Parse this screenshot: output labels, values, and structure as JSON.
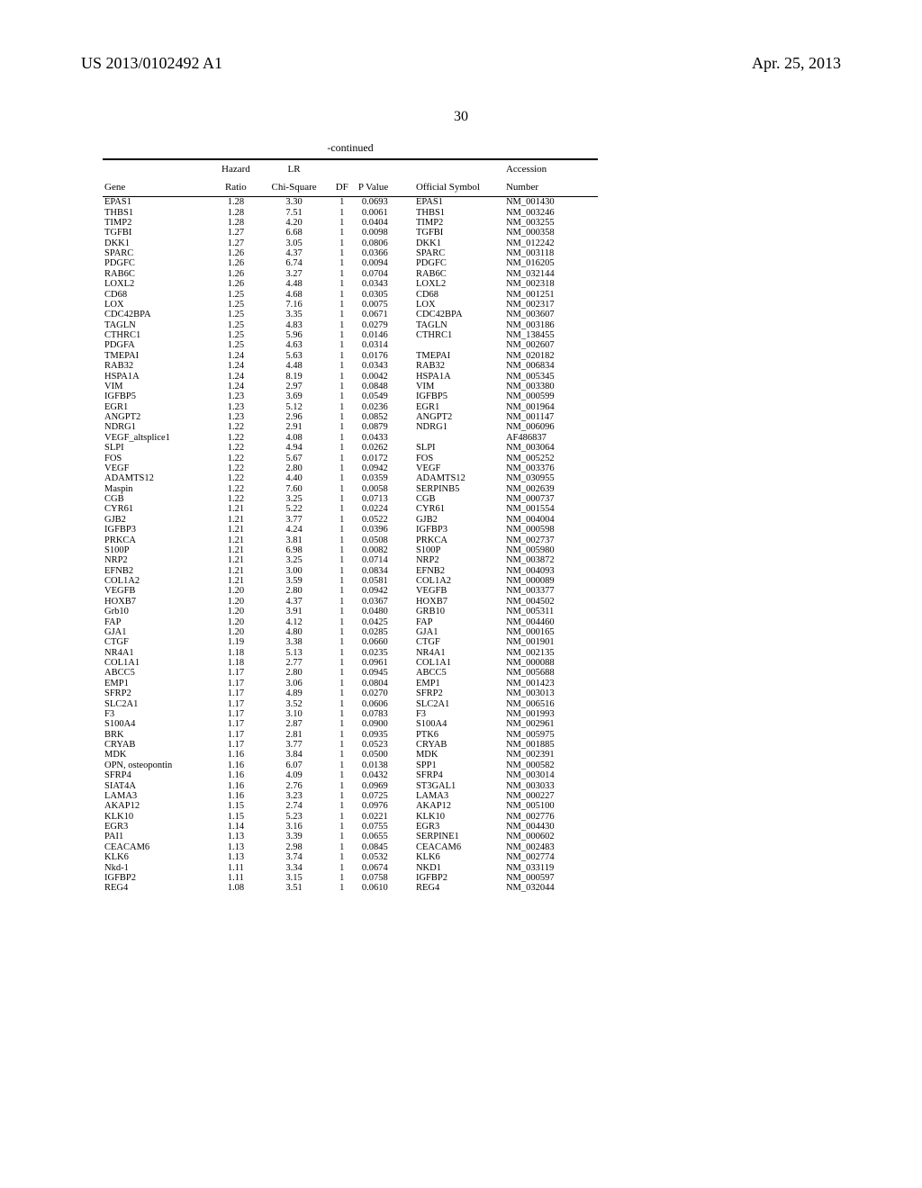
{
  "header": {
    "doc_id": "US 2013/0102492 A1",
    "date": "Apr. 25, 2013",
    "page_number": "30"
  },
  "table": {
    "continued_label": "-continued",
    "columns": {
      "gene": "Gene",
      "hazard_ratio_l1": "Hazard",
      "hazard_ratio_l2": "Ratio",
      "lr_l1": "LR",
      "lr_l2": "Chi-Square",
      "df": "DF",
      "pvalue": "P Value",
      "official_symbol": "Official Symbol",
      "accession_l1": "Accession",
      "accession_l2": "Number"
    },
    "rows": [
      {
        "gene": "EPAS1",
        "hr": "1.28",
        "chi": "3.30",
        "df": "1",
        "pv": "0.0693",
        "sym": "EPAS1",
        "acc": "NM_001430"
      },
      {
        "gene": "THBS1",
        "hr": "1.28",
        "chi": "7.51",
        "df": "1",
        "pv": "0.0061",
        "sym": "THBS1",
        "acc": "NM_003246"
      },
      {
        "gene": "TIMP2",
        "hr": "1.28",
        "chi": "4.20",
        "df": "1",
        "pv": "0.0404",
        "sym": "TIMP2",
        "acc": "NM_003255"
      },
      {
        "gene": "TGFBI",
        "hr": "1.27",
        "chi": "6.68",
        "df": "1",
        "pv": "0.0098",
        "sym": "TGFBI",
        "acc": "NM_000358"
      },
      {
        "gene": "DKK1",
        "hr": "1.27",
        "chi": "3.05",
        "df": "1",
        "pv": "0.0806",
        "sym": "DKK1",
        "acc": "NM_012242"
      },
      {
        "gene": "SPARC",
        "hr": "1.26",
        "chi": "4.37",
        "df": "1",
        "pv": "0.0366",
        "sym": "SPARC",
        "acc": "NM_003118"
      },
      {
        "gene": "PDGFC",
        "hr": "1.26",
        "chi": "6.74",
        "df": "1",
        "pv": "0.0094",
        "sym": "PDGFC",
        "acc": "NM_016205"
      },
      {
        "gene": "RAB6C",
        "hr": "1.26",
        "chi": "3.27",
        "df": "1",
        "pv": "0.0704",
        "sym": "RAB6C",
        "acc": "NM_032144"
      },
      {
        "gene": "LOXL2",
        "hr": "1.26",
        "chi": "4.48",
        "df": "1",
        "pv": "0.0343",
        "sym": "LOXL2",
        "acc": "NM_002318"
      },
      {
        "gene": "CD68",
        "hr": "1.25",
        "chi": "4.68",
        "df": "1",
        "pv": "0.0305",
        "sym": "CD68",
        "acc": "NM_001251"
      },
      {
        "gene": "LOX",
        "hr": "1.25",
        "chi": "7.16",
        "df": "1",
        "pv": "0.0075",
        "sym": "LOX",
        "acc": "NM_002317"
      },
      {
        "gene": "CDC42BPA",
        "hr": "1.25",
        "chi": "3.35",
        "df": "1",
        "pv": "0.0671",
        "sym": "CDC42BPA",
        "acc": "NM_003607"
      },
      {
        "gene": "TAGLN",
        "hr": "1.25",
        "chi": "4.83",
        "df": "1",
        "pv": "0.0279",
        "sym": "TAGLN",
        "acc": "NM_003186"
      },
      {
        "gene": "CTHRC1",
        "hr": "1.25",
        "chi": "5.96",
        "df": "1",
        "pv": "0.0146",
        "sym": "CTHRC1",
        "acc": "NM_138455"
      },
      {
        "gene": "PDGFA",
        "hr": "1.25",
        "chi": "4.63",
        "df": "1",
        "pv": "0.0314",
        "sym": "",
        "acc": "NM_002607"
      },
      {
        "gene": "TMEPAI",
        "hr": "1.24",
        "chi": "5.63",
        "df": "1",
        "pv": "0.0176",
        "sym": "TMEPAI",
        "acc": "NM_020182"
      },
      {
        "gene": "RAB32",
        "hr": "1.24",
        "chi": "4.48",
        "df": "1",
        "pv": "0.0343",
        "sym": "RAB32",
        "acc": "NM_006834"
      },
      {
        "gene": "HSPA1A",
        "hr": "1.24",
        "chi": "8.19",
        "df": "1",
        "pv": "0.0042",
        "sym": "HSPA1A",
        "acc": "NM_005345"
      },
      {
        "gene": "VIM",
        "hr": "1.24",
        "chi": "2.97",
        "df": "1",
        "pv": "0.0848",
        "sym": "VIM",
        "acc": "NM_003380"
      },
      {
        "gene": "IGFBP5",
        "hr": "1.23",
        "chi": "3.69",
        "df": "1",
        "pv": "0.0549",
        "sym": "IGFBP5",
        "acc": "NM_000599"
      },
      {
        "gene": "EGR1",
        "hr": "1.23",
        "chi": "5.12",
        "df": "1",
        "pv": "0.0236",
        "sym": "EGR1",
        "acc": "NM_001964"
      },
      {
        "gene": "ANGPT2",
        "hr": "1.23",
        "chi": "2.96",
        "df": "1",
        "pv": "0.0852",
        "sym": "ANGPT2",
        "acc": "NM_001147"
      },
      {
        "gene": "NDRG1",
        "hr": "1.22",
        "chi": "2.91",
        "df": "1",
        "pv": "0.0879",
        "sym": "NDRG1",
        "acc": "NM_006096"
      },
      {
        "gene": "VEGF_altsplice1",
        "hr": "1.22",
        "chi": "4.08",
        "df": "1",
        "pv": "0.0433",
        "sym": "",
        "acc": "AF486837"
      },
      {
        "gene": "SLPI",
        "hr": "1.22",
        "chi": "4.94",
        "df": "1",
        "pv": "0.0262",
        "sym": "SLPI",
        "acc": "NM_003064"
      },
      {
        "gene": "FOS",
        "hr": "1.22",
        "chi": "5.67",
        "df": "1",
        "pv": "0.0172",
        "sym": "FOS",
        "acc": "NM_005252"
      },
      {
        "gene": "VEGF",
        "hr": "1.22",
        "chi": "2.80",
        "df": "1",
        "pv": "0.0942",
        "sym": "VEGF",
        "acc": "NM_003376"
      },
      {
        "gene": "ADAMTS12",
        "hr": "1.22",
        "chi": "4.40",
        "df": "1",
        "pv": "0.0359",
        "sym": "ADAMTS12",
        "acc": "NM_030955"
      },
      {
        "gene": "Maspin",
        "hr": "1.22",
        "chi": "7.60",
        "df": "1",
        "pv": "0.0058",
        "sym": "SERPINB5",
        "acc": "NM_002639"
      },
      {
        "gene": "CGB",
        "hr": "1.22",
        "chi": "3.25",
        "df": "1",
        "pv": "0.0713",
        "sym": "CGB",
        "acc": "NM_000737"
      },
      {
        "gene": "CYR61",
        "hr": "1.21",
        "chi": "5.22",
        "df": "1",
        "pv": "0.0224",
        "sym": "CYR61",
        "acc": "NM_001554"
      },
      {
        "gene": "GJB2",
        "hr": "1.21",
        "chi": "3.77",
        "df": "1",
        "pv": "0.0522",
        "sym": "GJB2",
        "acc": "NM_004004"
      },
      {
        "gene": "IGFBP3",
        "hr": "1.21",
        "chi": "4.24",
        "df": "1",
        "pv": "0.0396",
        "sym": "IGFBP3",
        "acc": "NM_000598"
      },
      {
        "gene": "PRKCA",
        "hr": "1.21",
        "chi": "3.81",
        "df": "1",
        "pv": "0.0508",
        "sym": "PRKCA",
        "acc": "NM_002737"
      },
      {
        "gene": "S100P",
        "hr": "1.21",
        "chi": "6.98",
        "df": "1",
        "pv": "0.0082",
        "sym": "S100P",
        "acc": "NM_005980"
      },
      {
        "gene": "NRP2",
        "hr": "1.21",
        "chi": "3.25",
        "df": "1",
        "pv": "0.0714",
        "sym": "NRP2",
        "acc": "NM_003872"
      },
      {
        "gene": "EFNB2",
        "hr": "1.21",
        "chi": "3.00",
        "df": "1",
        "pv": "0.0834",
        "sym": "EFNB2",
        "acc": "NM_004093"
      },
      {
        "gene": "COL1A2",
        "hr": "1.21",
        "chi": "3.59",
        "df": "1",
        "pv": "0.0581",
        "sym": "COL1A2",
        "acc": "NM_000089"
      },
      {
        "gene": "VEGFB",
        "hr": "1.20",
        "chi": "2.80",
        "df": "1",
        "pv": "0.0942",
        "sym": "VEGFB",
        "acc": "NM_003377"
      },
      {
        "gene": "HOXB7",
        "hr": "1.20",
        "chi": "4.37",
        "df": "1",
        "pv": "0.0367",
        "sym": "HOXB7",
        "acc": "NM_004502"
      },
      {
        "gene": "Grb10",
        "hr": "1.20",
        "chi": "3.91",
        "df": "1",
        "pv": "0.0480",
        "sym": "GRB10",
        "acc": "NM_005311"
      },
      {
        "gene": "FAP",
        "hr": "1.20",
        "chi": "4.12",
        "df": "1",
        "pv": "0.0425",
        "sym": "FAP",
        "acc": "NM_004460"
      },
      {
        "gene": "GJA1",
        "hr": "1.20",
        "chi": "4.80",
        "df": "1",
        "pv": "0.0285",
        "sym": "GJA1",
        "acc": "NM_000165"
      },
      {
        "gene": "CTGF",
        "hr": "1.19",
        "chi": "3.38",
        "df": "1",
        "pv": "0.0660",
        "sym": "CTGF",
        "acc": "NM_001901"
      },
      {
        "gene": "NR4A1",
        "hr": "1.18",
        "chi": "5.13",
        "df": "1",
        "pv": "0.0235",
        "sym": "NR4A1",
        "acc": "NM_002135"
      },
      {
        "gene": "COL1A1",
        "hr": "1.18",
        "chi": "2.77",
        "df": "1",
        "pv": "0.0961",
        "sym": "COL1A1",
        "acc": "NM_000088"
      },
      {
        "gene": "ABCC5",
        "hr": "1.17",
        "chi": "2.80",
        "df": "1",
        "pv": "0.0945",
        "sym": "ABCC5",
        "acc": "NM_005688"
      },
      {
        "gene": "EMP1",
        "hr": "1.17",
        "chi": "3.06",
        "df": "1",
        "pv": "0.0804",
        "sym": "EMP1",
        "acc": "NM_001423"
      },
      {
        "gene": "SFRP2",
        "hr": "1.17",
        "chi": "4.89",
        "df": "1",
        "pv": "0.0270",
        "sym": "SFRP2",
        "acc": "NM_003013"
      },
      {
        "gene": "SLC2A1",
        "hr": "1.17",
        "chi": "3.52",
        "df": "1",
        "pv": "0.0606",
        "sym": "SLC2A1",
        "acc": "NM_006516"
      },
      {
        "gene": "F3",
        "hr": "1.17",
        "chi": "3.10",
        "df": "1",
        "pv": "0.0783",
        "sym": "F3",
        "acc": "NM_001993"
      },
      {
        "gene": "S100A4",
        "hr": "1.17",
        "chi": "2.87",
        "df": "1",
        "pv": "0.0900",
        "sym": "S100A4",
        "acc": "NM_002961"
      },
      {
        "gene": "BRK",
        "hr": "1.17",
        "chi": "2.81",
        "df": "1",
        "pv": "0.0935",
        "sym": "PTK6",
        "acc": "NM_005975"
      },
      {
        "gene": "CRYAB",
        "hr": "1.17",
        "chi": "3.77",
        "df": "1",
        "pv": "0.0523",
        "sym": "CRYAB",
        "acc": "NM_001885"
      },
      {
        "gene": "MDK",
        "hr": "1.16",
        "chi": "3.84",
        "df": "1",
        "pv": "0.0500",
        "sym": "MDK",
        "acc": "NM_002391"
      },
      {
        "gene": "OPN, osteopontin",
        "hr": "1.16",
        "chi": "6.07",
        "df": "1",
        "pv": "0.0138",
        "sym": "SPP1",
        "acc": "NM_000582"
      },
      {
        "gene": "SFRP4",
        "hr": "1.16",
        "chi": "4.09",
        "df": "1",
        "pv": "0.0432",
        "sym": "SFRP4",
        "acc": "NM_003014"
      },
      {
        "gene": "SIAT4A",
        "hr": "1.16",
        "chi": "2.76",
        "df": "1",
        "pv": "0.0969",
        "sym": "ST3GAL1",
        "acc": "NM_003033"
      },
      {
        "gene": "LAMA3",
        "hr": "1.16",
        "chi": "3.23",
        "df": "1",
        "pv": "0.0725",
        "sym": "LAMA3",
        "acc": "NM_000227"
      },
      {
        "gene": "AKAP12",
        "hr": "1.15",
        "chi": "2.74",
        "df": "1",
        "pv": "0.0976",
        "sym": "AKAP12",
        "acc": "NM_005100"
      },
      {
        "gene": "KLK10",
        "hr": "1.15",
        "chi": "5.23",
        "df": "1",
        "pv": "0.0221",
        "sym": "KLK10",
        "acc": "NM_002776"
      },
      {
        "gene": "EGR3",
        "hr": "1.14",
        "chi": "3.16",
        "df": "1",
        "pv": "0.0755",
        "sym": "EGR3",
        "acc": "NM_004430"
      },
      {
        "gene": "PAI1",
        "hr": "1.13",
        "chi": "3.39",
        "df": "1",
        "pv": "0.0655",
        "sym": "SERPINE1",
        "acc": "NM_000602"
      },
      {
        "gene": "CEACAM6",
        "hr": "1.13",
        "chi": "2.98",
        "df": "1",
        "pv": "0.0845",
        "sym": "CEACAM6",
        "acc": "NM_002483"
      },
      {
        "gene": "KLK6",
        "hr": "1.13",
        "chi": "3.74",
        "df": "1",
        "pv": "0.0532",
        "sym": "KLK6",
        "acc": "NM_002774"
      },
      {
        "gene": "Nkd-1",
        "hr": "1.11",
        "chi": "3.34",
        "df": "1",
        "pv": "0.0674",
        "sym": "NKD1",
        "acc": "NM_033119"
      },
      {
        "gene": "IGFBP2",
        "hr": "1.11",
        "chi": "3.15",
        "df": "1",
        "pv": "0.0758",
        "sym": "IGFBP2",
        "acc": "NM_000597"
      },
      {
        "gene": "REG4",
        "hr": "1.08",
        "chi": "3.51",
        "df": "1",
        "pv": "0.0610",
        "sym": "REG4",
        "acc": "NM_032044"
      }
    ]
  }
}
